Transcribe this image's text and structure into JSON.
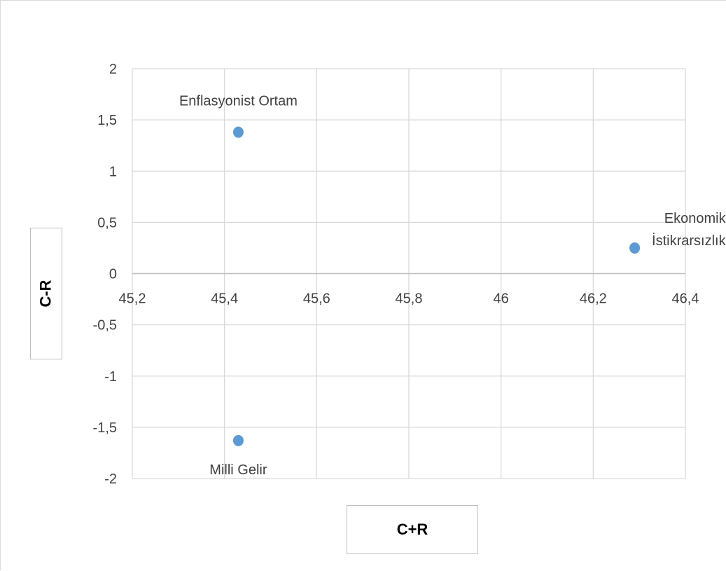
{
  "chart_data": {
    "type": "scatter",
    "title": "",
    "xlabel": "C+R",
    "ylabel": "C-R",
    "xlim": [
      45.2,
      46.4
    ],
    "ylim": [
      -2,
      2
    ],
    "x_ticks": [
      "45,2",
      "45,4",
      "45,6",
      "45,8",
      "46",
      "46,2",
      "46,4"
    ],
    "y_ticks": [
      "2",
      "1,5",
      "1",
      "0,5",
      "0",
      "-0,5",
      "-1",
      "-1,5",
      "-2"
    ],
    "grid": true,
    "marker_color": "#5b9bd5",
    "points": [
      {
        "x": 45.43,
        "y": 1.38,
        "label": [
          "Enflasyonist Ortam"
        ]
      },
      {
        "x": 46.29,
        "y": 0.25,
        "label": [
          "Ekonomik",
          "İstikrarsızlık"
        ]
      },
      {
        "x": 45.43,
        "y": -1.63,
        "label": [
          "Milli Gelir"
        ]
      }
    ]
  }
}
